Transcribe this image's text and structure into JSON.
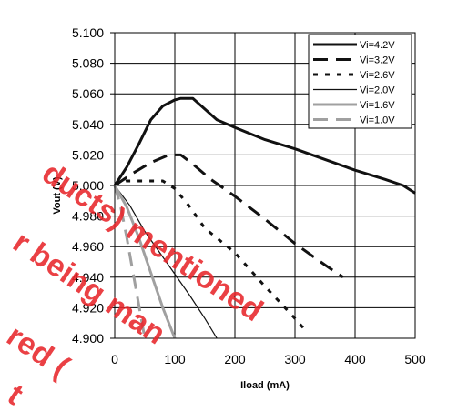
{
  "chart_data": {
    "type": "line",
    "xlabel": "Iload (mA)",
    "ylabel": "Vout (V)",
    "xlim": [
      0,
      500
    ],
    "ylim": [
      4.9,
      5.1
    ],
    "x_ticks": [
      "0",
      "100",
      "200",
      "300",
      "400",
      "500"
    ],
    "y_ticks": [
      "4.900",
      "4.920",
      "4.940",
      "4.960",
      "4.980",
      "5.000",
      "5.020",
      "5.040",
      "5.060",
      "5.080",
      "5.100"
    ],
    "grid": true,
    "legend_position": "top-right",
    "series": [
      {
        "name": "Vi=4.2V",
        "style": "solid-thick",
        "color": "#111111",
        "points": [
          [
            0,
            5.0
          ],
          [
            20,
            5.012
          ],
          [
            40,
            5.027
          ],
          [
            60,
            5.043
          ],
          [
            80,
            5.052
          ],
          [
            100,
            5.056
          ],
          [
            110,
            5.057
          ],
          [
            130,
            5.057
          ],
          [
            150,
            5.05
          ],
          [
            170,
            5.043
          ],
          [
            200,
            5.038
          ],
          [
            250,
            5.03
          ],
          [
            300,
            5.024
          ],
          [
            350,
            5.017
          ],
          [
            400,
            5.01
          ],
          [
            450,
            5.004
          ],
          [
            480,
            5.0
          ],
          [
            500,
            4.995
          ]
        ]
      },
      {
        "name": "Vi=3.2V",
        "style": "long-dash",
        "color": "#111111",
        "points": [
          [
            0,
            5.0
          ],
          [
            30,
            5.008
          ],
          [
            60,
            5.015
          ],
          [
            90,
            5.02
          ],
          [
            110,
            5.02
          ],
          [
            130,
            5.014
          ],
          [
            160,
            5.004
          ],
          [
            200,
            4.993
          ],
          [
            250,
            4.978
          ],
          [
            300,
            4.962
          ],
          [
            350,
            4.948
          ],
          [
            380,
            4.94
          ]
        ]
      },
      {
        "name": "Vi=2.6V",
        "style": "dotted",
        "color": "#111111",
        "points": [
          [
            0,
            5.0
          ],
          [
            20,
            5.003
          ],
          [
            40,
            5.003
          ],
          [
            80,
            5.003
          ],
          [
            100,
            4.998
          ],
          [
            125,
            4.986
          ],
          [
            150,
            4.972
          ],
          [
            200,
            4.956
          ],
          [
            250,
            4.934
          ],
          [
            300,
            4.913
          ],
          [
            320,
            4.904
          ]
        ]
      },
      {
        "name": "Vi=2.0V",
        "style": "solid-thin",
        "color": "#111111",
        "points": [
          [
            0,
            5.0
          ],
          [
            25,
            4.987
          ],
          [
            50,
            4.97
          ],
          [
            75,
            4.956
          ],
          [
            100,
            4.942
          ],
          [
            125,
            4.928
          ],
          [
            150,
            4.913
          ],
          [
            170,
            4.9
          ]
        ]
      },
      {
        "name": "Vi=1.6V",
        "style": "solid-gray",
        "color": "#a0a0a0",
        "points": [
          [
            0,
            5.0
          ],
          [
            20,
            4.986
          ],
          [
            40,
            4.966
          ],
          [
            60,
            4.943
          ],
          [
            80,
            4.92
          ],
          [
            100,
            4.9
          ]
        ]
      },
      {
        "name": "Vi=1.0V",
        "style": "dash-gray",
        "color": "#a0a0a0",
        "points": [
          [
            0,
            5.0
          ],
          [
            10,
            4.986
          ],
          [
            20,
            4.966
          ],
          [
            30,
            4.944
          ],
          [
            40,
            4.922
          ],
          [
            50,
            4.9
          ]
        ]
      }
    ]
  },
  "watermark": {
    "lines": [
      "ducts) mentioned",
      "r being man",
      "red (",
      "t"
    ]
  }
}
